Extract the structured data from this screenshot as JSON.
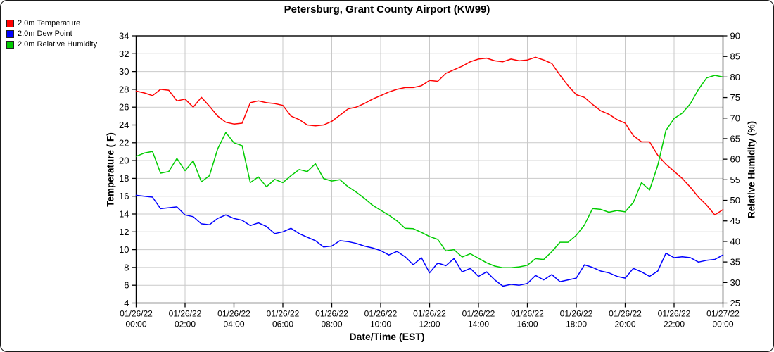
{
  "legend": {
    "items": [
      {
        "label": "2.0m Temperature",
        "color": "#ff0000"
      },
      {
        "label": "2.0m Dew Point",
        "color": "#0000ff"
      },
      {
        "label": "2.0m Relative Humidity",
        "color": "#00cc00"
      }
    ]
  },
  "chart_data": {
    "type": "line",
    "title": "Petersburg, Grant County Airport (KW99)",
    "xlabel": "Date/Time (EST)",
    "x_hours_range": [
      0,
      24
    ],
    "x_step_hours": 0.3333333,
    "x_tick_every_hours": 2,
    "x_tick_labels": [
      {
        "date": "01/26/22",
        "time": "00:00"
      },
      {
        "date": "01/26/22",
        "time": "02:00"
      },
      {
        "date": "01/26/22",
        "time": "04:00"
      },
      {
        "date": "01/26/22",
        "time": "06:00"
      },
      {
        "date": "01/26/22",
        "time": "08:00"
      },
      {
        "date": "01/26/22",
        "time": "10:00"
      },
      {
        "date": "01/26/22",
        "time": "12:00"
      },
      {
        "date": "01/26/22",
        "time": "14:00"
      },
      {
        "date": "01/26/22",
        "time": "16:00"
      },
      {
        "date": "01/26/22",
        "time": "18:00"
      },
      {
        "date": "01/26/22",
        "time": "20:00"
      },
      {
        "date": "01/26/22",
        "time": "22:00"
      },
      {
        "date": "01/27/22",
        "time": "00:00"
      }
    ],
    "y_left": {
      "label": "Temperature ( F)",
      "min": 4,
      "max": 34,
      "tick_step": 2
    },
    "y_right": {
      "label": "Relative Humidity (%)",
      "min": 25,
      "max": 90,
      "tick_step": 5
    },
    "grid": true,
    "grid_color": "#c9c9c9",
    "legend_position": "top-left",
    "series": [
      {
        "name": "2.0m Temperature",
        "axis": "left",
        "color": "#ff0000",
        "unit": "F",
        "values": [
          27.8,
          27.6,
          27.3,
          28.0,
          27.9,
          26.7,
          26.9,
          26.0,
          27.1,
          26.1,
          25.0,
          24.3,
          24.1,
          24.2,
          26.5,
          26.7,
          26.5,
          26.4,
          26.2,
          25.0,
          24.6,
          24.0,
          23.9,
          24.0,
          24.4,
          25.1,
          25.8,
          26.0,
          26.4,
          26.9,
          27.3,
          27.7,
          28.0,
          28.2,
          28.2,
          28.4,
          29.0,
          28.9,
          29.8,
          30.2,
          30.6,
          31.1,
          31.4,
          31.5,
          31.2,
          31.1,
          31.4,
          31.2,
          31.3,
          31.6,
          31.3,
          30.9,
          29.6,
          28.4,
          27.4,
          27.1,
          26.3,
          25.6,
          25.2,
          24.6,
          24.2,
          22.8,
          22.1,
          22.1,
          20.6,
          19.6,
          18.8,
          18.0,
          17.0,
          15.9,
          15.0,
          13.9,
          14.5
        ]
      },
      {
        "name": "2.0m Dew Point",
        "axis": "left",
        "color": "#0000ff",
        "unit": "F",
        "values": [
          16.1,
          16.0,
          15.9,
          14.6,
          14.7,
          14.8,
          13.9,
          13.7,
          12.9,
          12.8,
          13.5,
          13.9,
          13.5,
          13.3,
          12.7,
          13.0,
          12.6,
          11.8,
          12.0,
          12.4,
          11.8,
          11.4,
          11.0,
          10.3,
          10.4,
          11.0,
          10.9,
          10.7,
          10.4,
          10.2,
          9.9,
          9.4,
          9.8,
          9.2,
          8.3,
          9.1,
          7.4,
          8.5,
          8.2,
          9.0,
          7.5,
          7.9,
          7.0,
          7.5,
          6.6,
          5.9,
          6.1,
          6.0,
          6.2,
          7.1,
          6.6,
          7.2,
          6.4,
          6.6,
          6.8,
          8.3,
          8.0,
          7.6,
          7.4,
          7.0,
          6.8,
          7.9,
          7.5,
          7.0,
          7.6,
          9.6,
          9.1,
          9.2,
          9.1,
          8.6,
          8.8,
          8.9,
          9.4
        ]
      },
      {
        "name": "2.0m Relative Humidity",
        "axis": "right",
        "color": "#00cc00",
        "unit": "%",
        "values": [
          60.7,
          61.5,
          61.9,
          56.6,
          57.0,
          60.2,
          57.2,
          59.6,
          54.5,
          56.0,
          62.5,
          66.5,
          64.0,
          63.3,
          54.3,
          55.7,
          53.3,
          55.1,
          54.3,
          56.0,
          57.5,
          57.0,
          58.9,
          55.3,
          54.7,
          55.0,
          53.3,
          52.0,
          50.5,
          48.8,
          47.6,
          46.4,
          45.0,
          43.2,
          43.1,
          42.2,
          41.2,
          40.5,
          37.7,
          38.0,
          36.2,
          37.0,
          35.9,
          34.8,
          34.0,
          33.6,
          33.6,
          33.8,
          34.2,
          35.8,
          35.6,
          37.5,
          39.8,
          39.8,
          41.5,
          44.0,
          48.0,
          47.8,
          47.1,
          47.5,
          47.2,
          49.5,
          54.3,
          52.5,
          58.5,
          67.0,
          69.9,
          71.2,
          73.5,
          77.0,
          79.8,
          80.4,
          80.0
        ]
      }
    ]
  }
}
